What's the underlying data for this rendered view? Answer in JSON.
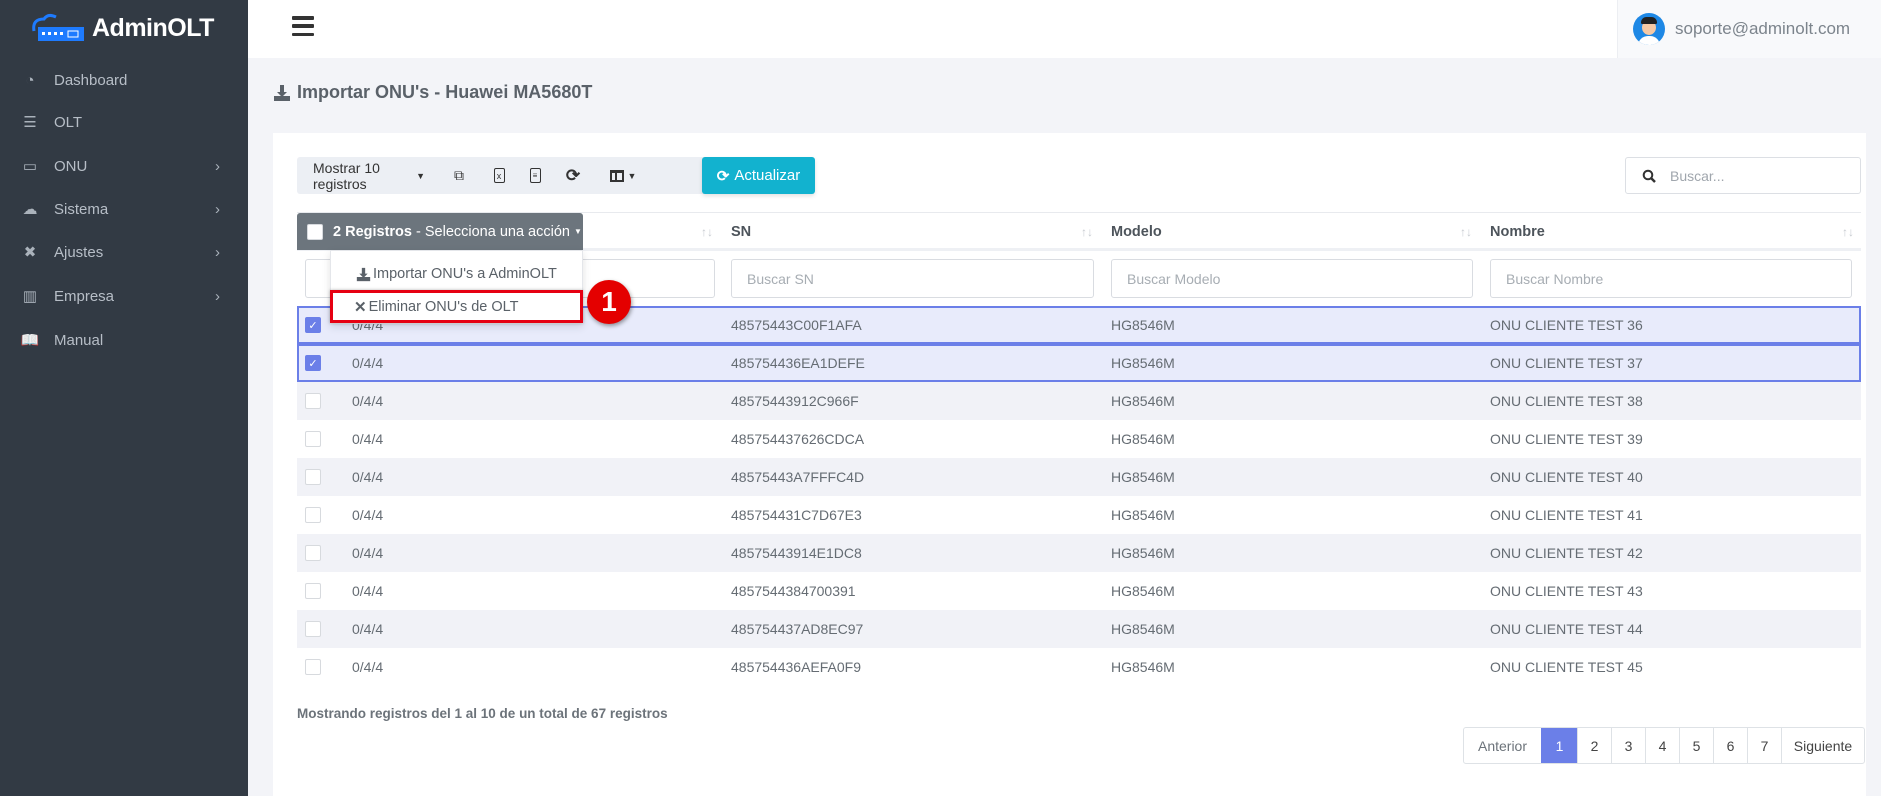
{
  "app": {
    "logo_text": "AdminOLT",
    "user_email": "soporte@adminolt.com"
  },
  "sidebar": {
    "items": [
      {
        "label": "Dashboard",
        "icon": "tachometer-icon",
        "has_children": false
      },
      {
        "label": "OLT",
        "icon": "server-icon",
        "has_children": false
      },
      {
        "label": "ONU",
        "icon": "hdd-icon",
        "has_children": true
      },
      {
        "label": "Sistema",
        "icon": "cloud-icon",
        "has_children": true
      },
      {
        "label": "Ajustes",
        "icon": "tools-icon",
        "has_children": true
      },
      {
        "label": "Empresa",
        "icon": "building-icon",
        "has_children": true
      },
      {
        "label": "Manual",
        "icon": "book-icon",
        "has_children": false
      }
    ]
  },
  "page": {
    "title": "Importar ONU's - Huawei MA5680T"
  },
  "toolbar": {
    "show_label": "Mostrar 10 registros",
    "refresh_label": "Actualizar",
    "search_placeholder": "Buscar..."
  },
  "actions": {
    "count_label": "2 Registros",
    "select_label": " - Selecciona una acción",
    "menu": [
      {
        "label": "Importar ONU's a AdminOLT",
        "icon": "download-icon"
      },
      {
        "label": "Eliminar ONU's de OLT",
        "icon": "times-icon"
      }
    ]
  },
  "annotation": {
    "number": "1",
    "color": "#e40000"
  },
  "table": {
    "columns": [
      "SN",
      "Modelo",
      "Nombre"
    ],
    "filters": [
      "Buscar SN",
      "Buscar Modelo",
      "Buscar Nombre"
    ],
    "rows": [
      {
        "checked": true,
        "port": "0/4/4",
        "sn": "48575443C00F1AFA",
        "model": "HG8546M",
        "name": "ONU CLIENTE TEST 36"
      },
      {
        "checked": true,
        "port": "0/4/4",
        "sn": "485754436EA1DEFE",
        "model": "HG8546M",
        "name": "ONU CLIENTE TEST 37"
      },
      {
        "checked": false,
        "port": "0/4/4",
        "sn": "48575443912C966F",
        "model": "HG8546M",
        "name": "ONU CLIENTE TEST 38"
      },
      {
        "checked": false,
        "port": "0/4/4",
        "sn": "485754437626CDCA",
        "model": "HG8546M",
        "name": "ONU CLIENTE TEST 39"
      },
      {
        "checked": false,
        "port": "0/4/4",
        "sn": "48575443A7FFFC4D",
        "model": "HG8546M",
        "name": "ONU CLIENTE TEST 40"
      },
      {
        "checked": false,
        "port": "0/4/4",
        "sn": "485754431C7D67E3",
        "model": "HG8546M",
        "name": "ONU CLIENTE TEST 41"
      },
      {
        "checked": false,
        "port": "0/4/4",
        "sn": "48575443914E1DC8",
        "model": "HG8546M",
        "name": "ONU CLIENTE TEST 42"
      },
      {
        "checked": false,
        "port": "0/4/4",
        "sn": "4857544384700391",
        "model": "HG8546M",
        "name": "ONU CLIENTE TEST 43"
      },
      {
        "checked": false,
        "port": "0/4/4",
        "sn": "485754437AD8EC97",
        "model": "HG8546M",
        "name": "ONU CLIENTE TEST 44"
      },
      {
        "checked": false,
        "port": "0/4/4",
        "sn": "485754436AEFA0F9",
        "model": "HG8546M",
        "name": "ONU CLIENTE TEST 45"
      }
    ]
  },
  "footer": {
    "info": "Mostrando registros del 1 al 10 de un total de 67 registros"
  },
  "pagination": {
    "prev": "Anterior",
    "next": "Siguiente",
    "pages": [
      "1",
      "2",
      "3",
      "4",
      "5",
      "6",
      "7"
    ],
    "active": "1"
  },
  "colors": {
    "sidebar": "#323a44",
    "accent": "#6b7fe8",
    "refresh": "#12b2cf",
    "highlight": "#e60012"
  }
}
